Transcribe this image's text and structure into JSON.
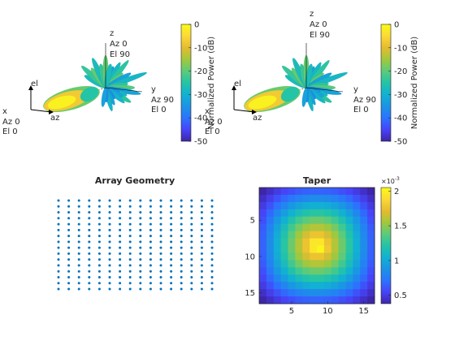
{
  "colors": {
    "parula": [
      "#3e26a8",
      "#4743f8",
      "#2c73fe",
      "#1b94e4",
      "#12b1d2",
      "#24c4a6",
      "#5ccb7a",
      "#a2c83c",
      "#e6bb2f",
      "#fcd938",
      "#f9fb15"
    ]
  },
  "pattern_plots": [
    {
      "axes_labels": {
        "el": "el",
        "az": "az",
        "x_lines": [
          "x",
          "Az 0",
          "El 0"
        ],
        "y_lines": [
          "y",
          "Az 90",
          "El 0"
        ],
        "z_lines": [
          "z",
          "Az 0",
          "El 90"
        ]
      },
      "colorbar": {
        "label": "Normalized Power (dB)",
        "ticks": [
          "0",
          "-10",
          "-20",
          "-30",
          "-40",
          "-50"
        ]
      }
    },
    {
      "axes_labels": {
        "el": "el",
        "az": "az",
        "x_lines": [
          "x",
          "Az 0",
          "El 0"
        ],
        "y_lines": [
          "y",
          "Az 90",
          "El 0"
        ],
        "z_lines": [
          "z",
          "Az 0",
          "El 90"
        ]
      },
      "colorbar": {
        "label": "Normalized Power (dB)",
        "ticks": [
          "0",
          "-10",
          "-20",
          "-30",
          "-40",
          "-50"
        ]
      }
    }
  ],
  "chart_data": [
    {
      "type": "scatter",
      "title": "Array Geometry",
      "rows": 16,
      "cols": 16,
      "marker_color": "#0072bd",
      "grid": false,
      "axes_visible": false
    },
    {
      "type": "heatmap",
      "title": "Taper",
      "x_ticks": [
        "5",
        "10",
        "15"
      ],
      "y_ticks": [
        "5",
        "10",
        "15"
      ],
      "colorbar_exponent": "×10",
      "colorbar_exponent_power": "-3",
      "colorbar_ticks": [
        "0.5",
        "1",
        "1.5",
        "2"
      ],
      "clim": [
        0.38,
        2.05
      ],
      "values": [
        [
          0.38,
          0.44,
          0.5,
          0.55,
          0.59,
          0.63,
          0.65,
          0.66,
          0.66,
          0.65,
          0.63,
          0.59,
          0.55,
          0.5,
          0.44,
          0.38
        ],
        [
          0.44,
          0.52,
          0.6,
          0.68,
          0.74,
          0.79,
          0.82,
          0.84,
          0.84,
          0.82,
          0.79,
          0.74,
          0.68,
          0.6,
          0.52,
          0.44
        ],
        [
          0.5,
          0.6,
          0.71,
          0.81,
          0.9,
          0.97,
          1.02,
          1.04,
          1.04,
          1.02,
          0.97,
          0.9,
          0.81,
          0.71,
          0.6,
          0.5
        ],
        [
          0.55,
          0.68,
          0.81,
          0.94,
          1.05,
          1.14,
          1.2,
          1.23,
          1.23,
          1.2,
          1.14,
          1.05,
          0.94,
          0.81,
          0.68,
          0.55
        ],
        [
          0.59,
          0.74,
          0.9,
          1.05,
          1.19,
          1.3,
          1.38,
          1.42,
          1.42,
          1.38,
          1.3,
          1.19,
          1.05,
          0.9,
          0.74,
          0.59
        ],
        [
          0.63,
          0.79,
          0.97,
          1.14,
          1.3,
          1.44,
          1.54,
          1.59,
          1.59,
          1.54,
          1.44,
          1.3,
          1.14,
          0.97,
          0.79,
          0.63
        ],
        [
          0.65,
          0.82,
          1.02,
          1.2,
          1.38,
          1.54,
          1.67,
          1.76,
          1.76,
          1.67,
          1.54,
          1.38,
          1.2,
          1.02,
          0.82,
          0.65
        ],
        [
          0.66,
          0.84,
          1.04,
          1.23,
          1.42,
          1.59,
          1.76,
          1.95,
          1.95,
          1.76,
          1.59,
          1.42,
          1.23,
          1.04,
          0.84,
          0.66
        ],
        [
          0.66,
          0.84,
          1.04,
          1.23,
          1.42,
          1.59,
          1.76,
          1.95,
          2.02,
          1.79,
          1.59,
          1.42,
          1.23,
          1.04,
          0.84,
          0.66
        ],
        [
          0.65,
          0.82,
          1.02,
          1.2,
          1.38,
          1.54,
          1.67,
          1.76,
          1.76,
          1.67,
          1.54,
          1.38,
          1.2,
          1.02,
          0.82,
          0.65
        ],
        [
          0.63,
          0.79,
          0.97,
          1.14,
          1.3,
          1.44,
          1.54,
          1.59,
          1.59,
          1.54,
          1.44,
          1.3,
          1.14,
          0.97,
          0.79,
          0.63
        ],
        [
          0.59,
          0.74,
          0.9,
          1.05,
          1.19,
          1.3,
          1.38,
          1.42,
          1.42,
          1.38,
          1.3,
          1.19,
          1.05,
          0.9,
          0.74,
          0.59
        ],
        [
          0.55,
          0.68,
          0.81,
          0.94,
          1.05,
          1.14,
          1.2,
          1.23,
          1.23,
          1.2,
          1.14,
          1.05,
          0.94,
          0.81,
          0.68,
          0.55
        ],
        [
          0.5,
          0.6,
          0.71,
          0.81,
          0.9,
          0.97,
          1.02,
          1.04,
          1.04,
          1.02,
          0.97,
          0.9,
          0.81,
          0.71,
          0.6,
          0.5
        ],
        [
          0.44,
          0.52,
          0.6,
          0.68,
          0.74,
          0.79,
          0.82,
          0.84,
          0.84,
          0.82,
          0.79,
          0.74,
          0.68,
          0.6,
          0.52,
          0.44
        ],
        [
          0.38,
          0.44,
          0.5,
          0.55,
          0.59,
          0.63,
          0.65,
          0.66,
          0.66,
          0.65,
          0.63,
          0.59,
          0.55,
          0.5,
          0.44,
          0.38
        ]
      ]
    }
  ]
}
